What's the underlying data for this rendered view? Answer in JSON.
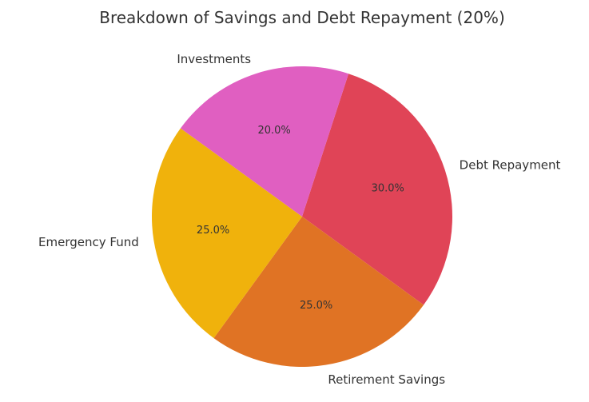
{
  "chart_data": {
    "type": "pie",
    "title": "Breakdown of Savings and Debt Repayment (20%)",
    "start_angle_deg": 72,
    "direction": "clockwise",
    "slices": [
      {
        "label": "Debt Repayment",
        "value": 30.0,
        "pct_label": "30.0%",
        "color": "#e04457"
      },
      {
        "label": "Retirement Savings",
        "value": 25.0,
        "pct_label": "25.0%",
        "color": "#e07324"
      },
      {
        "label": "Emergency Fund",
        "value": 25.0,
        "pct_label": "25.0%",
        "color": "#f0b20c"
      },
      {
        "label": "Investments",
        "value": 20.0,
        "pct_label": "20.0%",
        "color": "#e05fc1"
      }
    ]
  }
}
